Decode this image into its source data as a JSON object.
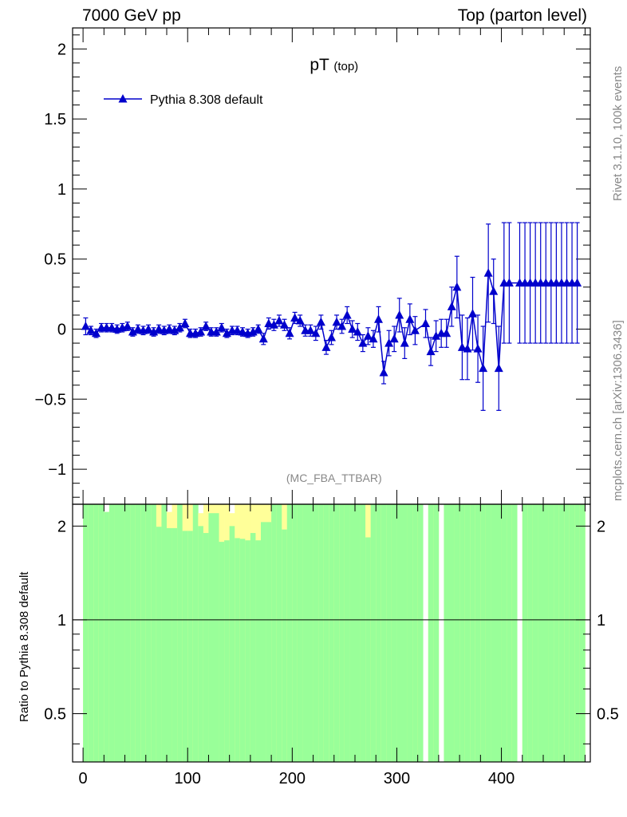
{
  "header": {
    "left": "7000 GeV pp",
    "right": "Top (parton level)"
  },
  "side_labels": {
    "rivet": "Rivet 3.1.10,  100k events",
    "mcplots": "mcplots.cern.ch [arXiv:1306.3436]"
  },
  "colors": {
    "series": "#0000cc",
    "band_inner": "#99ff99",
    "band_outer": "#ffff99",
    "axis": "#000000"
  },
  "chart_data": [
    {
      "type": "line",
      "title": "pT",
      "title_sub": "(top)",
      "watermark": "(MC_FBA_TTBAR)",
      "xlabel": "",
      "ylabel": "",
      "xlim": [
        -10,
        485
      ],
      "ylim": [
        -1.25,
        2.15
      ],
      "yticks": [
        -1,
        -0.5,
        0,
        0.5,
        1,
        1.5,
        2
      ],
      "ytick_labels": [
        "−1",
        "−0.5",
        "0",
        "0.5",
        "1",
        "1.5",
        "2"
      ],
      "legend": {
        "position": "top-left"
      },
      "series": [
        {
          "name": "Pythia 8.308 default",
          "marker": "triangle-up",
          "x": [
            2.5,
            7.5,
            12.5,
            17.5,
            22.5,
            27.5,
            32.5,
            37.5,
            42.5,
            47.5,
            52.5,
            57.5,
            62.5,
            67.5,
            72.5,
            77.5,
            82.5,
            87.5,
            92.5,
            97.5,
            102.5,
            107.5,
            112.5,
            117.5,
            122.5,
            127.5,
            132.5,
            137.5,
            142.5,
            147.5,
            152.5,
            157.5,
            162.5,
            167.5,
            172.5,
            177.5,
            182.5,
            187.5,
            192.5,
            197.5,
            202.5,
            207.5,
            212.5,
            217.5,
            222.5,
            227.5,
            232.5,
            237.5,
            242.5,
            247.5,
            252.5,
            257.5,
            262.5,
            267.5,
            272.5,
            277.5,
            282.5,
            287.5,
            292.5,
            297.5,
            302.5,
            307.5,
            312.5,
            317.5,
            327.5,
            332.5,
            337.5,
            342.5,
            347.5,
            352.5,
            357.5,
            362.5,
            367.5,
            372.5,
            377.5,
            382.5,
            387.5,
            392.5,
            397.5,
            402.5,
            407.5,
            417.5,
            422.5,
            427.5,
            432.5,
            437.5,
            442.5,
            447.5,
            452.5,
            457.5,
            462.5,
            467.5,
            472.5
          ],
          "y": [
            0.02,
            -0.01,
            -0.03,
            0.01,
            0.01,
            0.01,
            0.0,
            0.01,
            0.02,
            -0.02,
            0.0,
            -0.01,
            0.0,
            -0.02,
            0.0,
            -0.01,
            0.0,
            -0.01,
            0.01,
            0.04,
            -0.03,
            -0.03,
            -0.02,
            0.02,
            -0.02,
            -0.02,
            0.01,
            -0.03,
            -0.01,
            -0.01,
            -0.02,
            -0.03,
            -0.02,
            0.0,
            -0.07,
            0.04,
            0.03,
            0.06,
            0.03,
            -0.03,
            0.08,
            0.06,
            -0.01,
            -0.01,
            -0.03,
            0.05,
            -0.13,
            -0.06,
            0.05,
            0.02,
            0.1,
            0.0,
            -0.02,
            -0.1,
            -0.05,
            -0.07,
            0.07,
            -0.31,
            -0.1,
            -0.07,
            0.1,
            -0.1,
            0.07,
            -0.01,
            0.04,
            -0.16,
            -0.05,
            -0.03,
            -0.03,
            0.16,
            0.3,
            -0.13,
            -0.14,
            0.11,
            -0.14,
            -0.28,
            0.4,
            0.27,
            -0.28,
            0.33,
            0.33,
            0.33,
            0.33,
            0.33,
            0.33,
            0.33,
            0.33,
            0.33,
            0.33,
            0.33,
            0.33,
            0.33,
            0.33
          ],
          "yerr": [
            0.06,
            0.03,
            0.03,
            0.03,
            0.03,
            0.03,
            0.03,
            0.03,
            0.03,
            0.03,
            0.03,
            0.03,
            0.03,
            0.03,
            0.03,
            0.03,
            0.03,
            0.03,
            0.03,
            0.03,
            0.03,
            0.03,
            0.03,
            0.03,
            0.03,
            0.03,
            0.03,
            0.03,
            0.03,
            0.03,
            0.03,
            0.03,
            0.03,
            0.03,
            0.04,
            0.04,
            0.04,
            0.04,
            0.04,
            0.04,
            0.04,
            0.04,
            0.04,
            0.04,
            0.05,
            0.05,
            0.05,
            0.05,
            0.05,
            0.05,
            0.06,
            0.06,
            0.06,
            0.06,
            0.06,
            0.06,
            0.09,
            0.08,
            0.09,
            0.09,
            0.12,
            0.11,
            0.11,
            0.1,
            0.1,
            0.1,
            0.11,
            0.1,
            0.1,
            0.14,
            0.22,
            0.23,
            0.22,
            0.26,
            0.24,
            0.3,
            0.35,
            0.23,
            0.3,
            0.43,
            0.43,
            0.43,
            0.43,
            0.43,
            0.43,
            0.43,
            0.43,
            0.43,
            0.43,
            0.43,
            0.43,
            0.43,
            0.43
          ]
        }
      ]
    },
    {
      "type": "bar",
      "ylabel": "Ratio to Pythia 8.308 default",
      "xlim": [
        -10,
        485
      ],
      "ylim": [
        0.35,
        2.35
      ],
      "yticks": [
        0.5,
        1,
        2
      ],
      "ytick_labels": [
        "0.5",
        "1",
        "2"
      ],
      "xticks": [
        0,
        100,
        200,
        300,
        400
      ],
      "xtick_labels": [
        "0",
        "100",
        "200",
        "300",
        "400"
      ],
      "reference_line": 1,
      "bin_width": 5,
      "bin_start": 0,
      "bands": {
        "yellow_top": [
          2.35,
          2.35,
          2.35,
          2.35,
          2.22,
          2.35,
          2.35,
          2.35,
          2.35,
          2.35,
          2.35,
          2.35,
          2.35,
          2.35,
          2.35,
          2.35,
          2.22,
          2.35,
          2.35,
          2.35,
          2.35,
          2.35,
          2.2,
          2.35,
          2.35,
          2.35,
          2.35,
          2.35,
          2.2,
          2.35,
          2.35,
          2.35,
          2.35,
          2.35,
          2.35,
          2.35,
          2.35,
          2.35,
          2.35,
          2.35,
          2.35,
          2.35,
          2.35,
          2.35,
          2.35,
          2.35,
          2.35,
          2.35,
          2.35,
          2.35,
          2.35,
          2.35,
          2.35,
          2.35,
          2.35,
          2.35,
          2.35,
          2.35,
          2.35,
          2.35,
          2.35,
          2.35,
          2.35,
          2.35,
          2.35,
          2.35,
          2.35,
          2.35,
          2.35,
          2.35,
          2.35,
          2.35,
          2.35,
          2.35,
          2.35,
          2.35,
          2.35,
          2.35,
          2.35,
          2.35,
          2.35,
          2.35,
          2.35,
          2.35,
          2.35,
          2.35,
          2.35,
          2.35,
          2.35,
          2.35,
          2.35,
          2.35,
          2.35,
          2.35,
          2.35,
          2.35
        ],
        "green_top": [
          2.35,
          2.35,
          2.35,
          2.35,
          2.22,
          2.35,
          2.35,
          2.35,
          2.35,
          2.35,
          2.35,
          2.35,
          2.35,
          2.35,
          1.99,
          2.35,
          1.97,
          1.97,
          2.35,
          1.93,
          1.93,
          2.35,
          2.0,
          1.9,
          2.2,
          2.2,
          1.78,
          1.8,
          2.0,
          1.83,
          1.82,
          1.8,
          1.9,
          1.8,
          2.06,
          2.06,
          2.35,
          2.35,
          1.95,
          2.35,
          2.35,
          2.35,
          2.35,
          2.35,
          2.35,
          2.35,
          2.35,
          2.35,
          2.35,
          2.35,
          2.35,
          2.35,
          2.35,
          2.35,
          1.84,
          2.35,
          2.35,
          2.35,
          2.35,
          2.35,
          2.35,
          2.35,
          2.35,
          2.35,
          2.35,
          2.35,
          2.35,
          2.35,
          2.35,
          2.35,
          2.35,
          2.35,
          2.35,
          2.35,
          2.35,
          2.35,
          2.35,
          2.35,
          2.35,
          2.35,
          2.35,
          2.35,
          2.35,
          2.35,
          2.35,
          2.35,
          2.35,
          2.35,
          2.35,
          2.35,
          2.35,
          2.35,
          2.35,
          2.35,
          2.35,
          2.35
        ],
        "green_bottom": [
          0.35,
          0.35,
          0.35,
          0.35,
          0.35,
          0.35,
          0.35,
          0.35,
          0.35,
          0.35,
          0.35,
          0.35,
          0.35,
          0.35,
          0.35,
          0.35,
          0.35,
          0.35,
          0.35,
          0.35,
          0.35,
          0.35,
          0.35,
          0.35,
          0.35,
          0.35,
          0.35,
          0.35,
          0.35,
          0.35,
          0.35,
          0.35,
          0.35,
          0.35,
          0.35,
          0.35,
          0.35,
          0.35,
          0.35,
          0.35,
          0.35,
          0.35,
          0.35,
          0.35,
          0.35,
          0.35,
          0.35,
          0.35,
          0.35,
          0.35,
          0.35,
          0.35,
          0.35,
          0.35,
          0.35,
          0.35,
          0.35,
          0.35,
          0.35,
          0.35,
          0.35,
          0.35,
          0.35,
          0.35,
          0.35,
          0.35,
          0.35,
          0.35,
          0.35,
          0.35,
          0.35,
          0.35,
          0.35,
          0.35,
          0.35,
          0.35,
          0.35,
          0.35,
          0.35,
          0.35,
          0.35,
          0.35,
          0.35,
          0.35,
          0.35,
          0.35,
          0.35,
          0.35,
          0.35,
          0.35,
          0.35,
          0.35,
          0.35,
          0.35,
          0.35,
          0.35
        ],
        "gaps": [
          65,
          68,
          83
        ]
      }
    }
  ]
}
